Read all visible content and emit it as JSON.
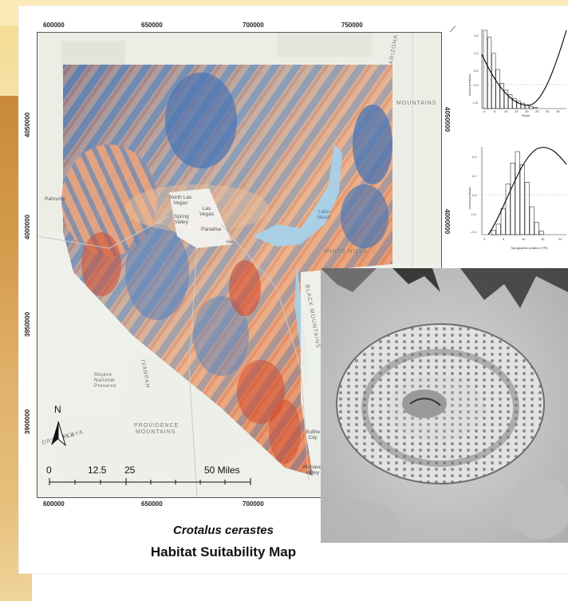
{
  "map": {
    "top_ticks": [
      "600000",
      "650000",
      "700000",
      "750000"
    ],
    "bottom_ticks": [
      "600000",
      "650000",
      "700000"
    ],
    "left_ticks": [
      "4050000",
      "4000000",
      "3950000",
      "3900000"
    ],
    "right_ticks": [
      "4050000",
      "4000000"
    ],
    "north_label": "N",
    "scale_labels": [
      "0",
      "12.5",
      "25",
      "50 Miles"
    ],
    "places": {
      "arizona": "ARIZONA",
      "mountains": "MOUNTAINS",
      "white_hills": "WHITE HILLS",
      "black_mountains": "BLACK MOUNTAINS",
      "ivanpah": "IVANPAH",
      "providence": "PROVIDENCE",
      "providence2": "MOUNTAINS",
      "mojave": "Mojave",
      "mojave2": "National",
      "mojave3": "Preserve",
      "dry_lake": "DRY LAKE",
      "playa": "PLAYA"
    },
    "cities": {
      "pahrump": "Pahrump",
      "north_las_vegas": "North Las\nVegas",
      "las_vegas": "Las\nVegas",
      "spring_valley": "Spring\nValley",
      "paradise": "Paradise",
      "henderson": "He",
      "lake_mead": "Lake\nMead",
      "bullhead": "Bullhe\nCity",
      "mohave_valley": "Mohave\nValley"
    }
  },
  "caption": {
    "species": "Crotalus cerastes",
    "title": "Habitat Suitability Map"
  },
  "plots": [
    {
      "type": "bar",
      "xlabel": "Slope",
      "ylabel": "Linear predictor",
      "yticks": [
        "1.5",
        "1.0",
        "0.5",
        "0.0",
        "-0.5"
      ],
      "xticks": [
        "0",
        "5",
        "10",
        "15",
        "20",
        "25",
        "30",
        "35"
      ],
      "values": [
        1.7,
        1.55,
        1.2,
        0.85,
        0.55,
        0.4,
        0.3,
        0.22,
        0.16,
        0.12,
        0.08,
        0.05,
        0.03
      ]
    },
    {
      "type": "bar",
      "xlabel": "Topographic position (TPI)",
      "ylabel": "Linear predictor",
      "yticks": [
        "0.4",
        "0.2",
        "0.0",
        "-0.2",
        "-0.4"
      ],
      "xticks": [
        "0",
        "5",
        "10",
        "15",
        "20"
      ],
      "values": [
        0.05,
        0.12,
        0.3,
        0.58,
        0.82,
        0.95,
        0.8,
        0.6,
        0.32,
        0.14,
        0.04
      ]
    }
  ],
  "colors": {
    "high": "#d24a2e",
    "mid": "#f0c09a",
    "low": "#3e6db0"
  }
}
